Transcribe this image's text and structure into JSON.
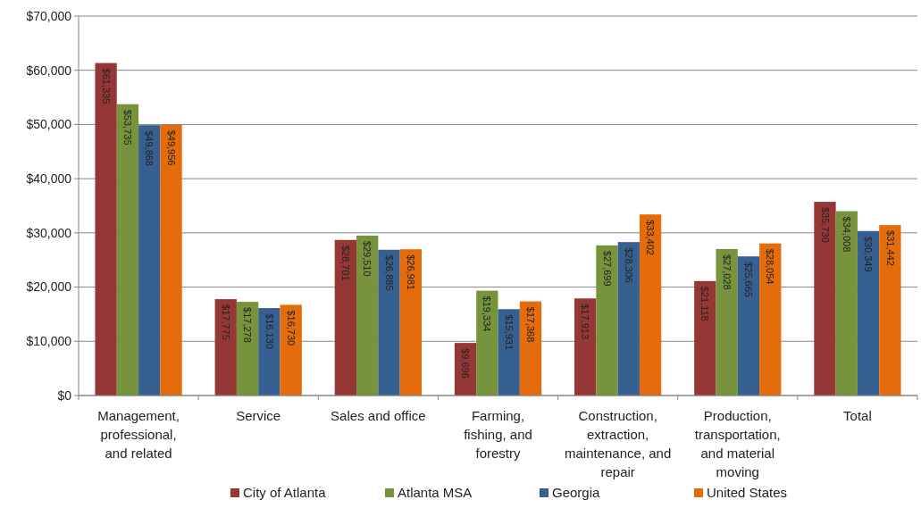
{
  "chart_data": {
    "type": "bar",
    "categories": [
      "Management, professional, and related",
      "Service",
      "Sales and office",
      "Farming, fishing, and forestry",
      "Construction, extraction, maintenance, and repair",
      "Production, transportation, and material moving",
      "Total"
    ],
    "series": [
      {
        "name": "City of Atlanta",
        "color": "#953735",
        "values": [
          61335,
          17775,
          28701,
          9696,
          17913,
          21118,
          35730
        ],
        "value_labels": [
          "$61,335",
          "$17,775",
          "$28,701",
          "$9,696",
          "$17,913",
          "$21,118",
          "$35,730"
        ]
      },
      {
        "name": "Atlanta MSA",
        "color": "#77933c",
        "values": [
          53735,
          17278,
          29510,
          19334,
          27699,
          27028,
          34008
        ],
        "value_labels": [
          "$53,735",
          "$17,278",
          "$29,510",
          "$19,334",
          "$27,699",
          "$27,028",
          "$34,008"
        ]
      },
      {
        "name": "Georgia",
        "color": "#376092",
        "values": [
          49868,
          16130,
          26885,
          15931,
          28306,
          25665,
          30349
        ],
        "value_labels": [
          "$49,868",
          "$16,130",
          "$26,885",
          "$15,931",
          "$28,306",
          "$25,665",
          "$30,349"
        ]
      },
      {
        "name": "United States",
        "color": "#e46c0a",
        "values": [
          49956,
          16730,
          26981,
          17368,
          33402,
          28054,
          31442
        ],
        "value_labels": [
          "$49,956",
          "$16,730",
          "$26,981",
          "$17,368",
          "$33,402",
          "$28,054",
          "$31,442"
        ]
      }
    ],
    "ylim": [
      0,
      70000
    ],
    "yticks": [
      {
        "value": 0,
        "label": "$0"
      },
      {
        "value": 10000,
        "label": "$10,000"
      },
      {
        "value": 20000,
        "label": "$20,000"
      },
      {
        "value": 30000,
        "label": "$30,000"
      },
      {
        "value": 40000,
        "label": "$40,000"
      },
      {
        "value": 50000,
        "label": "$50,000"
      },
      {
        "value": 60000,
        "label": "$60,000"
      },
      {
        "value": 70000,
        "label": "$70,000"
      }
    ],
    "grid": "y",
    "legend": "bottom"
  }
}
